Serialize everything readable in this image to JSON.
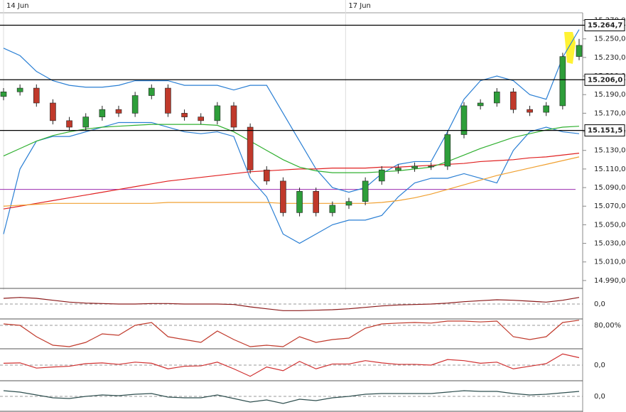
{
  "chart_data": {
    "type": "candlestick",
    "xticks": [
      {
        "value": 0,
        "label": "14 Jun"
      },
      {
        "value": 20.8,
        "label": "17 Jun"
      }
    ],
    "xlim": [
      0,
      35
    ],
    "ylim": [
      14980,
      15275
    ],
    "yticks": [
      {
        "value": 15270,
        "label": "15.270,0"
      },
      {
        "value": 15250,
        "label": "15.250,0"
      },
      {
        "value": 15230,
        "label": "15.230,0"
      },
      {
        "value": 15210,
        "label": "15.210,0"
      },
      {
        "value": 15190,
        "label": "15.190,0"
      },
      {
        "value": 15170,
        "label": "15.170,0"
      },
      {
        "value": 15150,
        "label": "15.150,0"
      },
      {
        "value": 15130,
        "label": "15.130,0"
      },
      {
        "value": 15110,
        "label": "15.110,0"
      },
      {
        "value": 15090,
        "label": "15.090,0"
      },
      {
        "value": 15070,
        "label": "15.070,0"
      },
      {
        "value": 15050,
        "label": "15.050,0"
      },
      {
        "value": 15030,
        "label": "15.030,0"
      },
      {
        "value": 15010,
        "label": "15.010,0"
      },
      {
        "value": 14990,
        "label": "14.990,0"
      }
    ],
    "up_color": "#2e9e3a",
    "down_color": "#c0392b",
    "open": [
      15188,
      15193,
      15197,
      15181,
      15162,
      15155,
      15166,
      15174,
      15170,
      15189,
      15197,
      15170,
      15166,
      15162,
      15178,
      15155,
      15109,
      15097,
      15063,
      15086,
      15063,
      15071,
      15075,
      15097,
      15109,
      15111,
      15113,
      15113,
      15147,
      15178,
      15181,
      15193,
      15174,
      15171,
      15178,
      15231
    ],
    "high": [
      15197,
      15201,
      15201,
      15185,
      15166,
      15170,
      15178,
      15178,
      15193,
      15201,
      15201,
      15174,
      15170,
      15182,
      15182,
      15159,
      15113,
      15101,
      15090,
      15090,
      15075,
      15079,
      15101,
      15113,
      15115,
      15117,
      15117,
      15151,
      15182,
      15185,
      15197,
      15197,
      15178,
      15182,
      15235,
      15250
    ],
    "low": [
      15184,
      15189,
      15177,
      15158,
      15151,
      15151,
      15162,
      15166,
      15166,
      15185,
      15166,
      15162,
      15158,
      15158,
      15151,
      15105,
      15093,
      15059,
      15059,
      15059,
      15059,
      15067,
      15071,
      15093,
      15105,
      15107,
      15109,
      15109,
      15143,
      15174,
      15177,
      15170,
      15167,
      15167,
      15174,
      15227
    ],
    "close": [
      15193,
      15197,
      15181,
      15162,
      15155,
      15166,
      15174,
      15170,
      15189,
      15197,
      15170,
      15166,
      15162,
      15178,
      15155,
      15109,
      15097,
      15063,
      15086,
      15063,
      15071,
      15075,
      15097,
      15109,
      15111,
      15113,
      15113,
      15147,
      15178,
      15181,
      15193,
      15174,
      15171,
      15178,
      15231,
      15243
    ],
    "overlays": [
      {
        "color": "#2a7fd4",
        "values": [
          15240,
          15232,
          15215,
          15205,
          15200,
          15198,
          15198,
          15200,
          15205,
          15205,
          15205,
          15200,
          15200,
          15200,
          15195,
          15200,
          15200,
          15170,
          15140,
          15110,
          15090,
          15085,
          15090,
          15105,
          15115,
          15118,
          15118,
          15150,
          15185,
          15205,
          15210,
          15205,
          15190,
          15185,
          15230,
          15260
        ]
      },
      {
        "color": "#2a7fd4",
        "values": [
          15040,
          15110,
          15140,
          15145,
          15145,
          15150,
          15155,
          15160,
          15160,
          15160,
          15155,
          15150,
          15148,
          15150,
          15145,
          15100,
          15080,
          15040,
          15030,
          15040,
          15050,
          15055,
          15055,
          15060,
          15080,
          15095,
          15100,
          15100,
          15105,
          15100,
          15095,
          15130,
          15150,
          15155,
          15150,
          15148
        ]
      },
      {
        "color": "#e02020",
        "values": [
          15067,
          15070,
          15073,
          15076,
          15079,
          15082,
          15085,
          15088,
          15091,
          15094,
          15097,
          15099,
          15101,
          15103,
          15105,
          15107,
          15108,
          15109,
          15110,
          15110,
          15111,
          15111,
          15111,
          15112,
          15112,
          15113,
          15114,
          15115,
          15116,
          15118,
          15119,
          15120,
          15122,
          15123,
          15125,
          15127
        ]
      },
      {
        "color": "#f0a030",
        "values": [
          15070,
          15071,
          15072,
          15073,
          15073,
          15073,
          15073,
          15073,
          15073,
          15073,
          15074,
          15074,
          15074,
          15074,
          15074,
          15074,
          15074,
          15073,
          15073,
          15073,
          15073,
          15073,
          15073,
          15074,
          15076,
          15079,
          15083,
          15088,
          15093,
          15098,
          15103,
          15107,
          15111,
          15115,
          15119,
          15123
        ]
      },
      {
        "color": "#30b030",
        "values": [
          15124,
          15132,
          15140,
          15146,
          15150,
          15153,
          15155,
          15156,
          15157,
          15158,
          15158,
          15158,
          15158,
          15157,
          15150,
          15140,
          15130,
          15120,
          15112,
          15108,
          15106,
          15106,
          15106,
          15107,
          15108,
          15110,
          15112,
          15118,
          15125,
          15132,
          15138,
          15144,
          15148,
          15152,
          15155,
          15156
        ]
      }
    ],
    "hline": {
      "color": "#9b2bb0",
      "value": 15088
    },
    "levels": [
      {
        "value": 15264.7,
        "label": "15.264,7"
      },
      {
        "value": 15206,
        "label": "15.206,0"
      },
      {
        "value": 15151.5,
        "label": "15.151,5"
      }
    ],
    "indicators": [
      {
        "color": "#8b1a1a",
        "ylim": [
          -30,
          30
        ],
        "yticks": [
          {
            "value": 0,
            "label": "0,0"
          }
        ],
        "values": [
          12,
          14,
          12,
          8,
          4,
          2,
          1,
          0,
          0,
          1,
          1,
          0,
          0,
          0,
          -1,
          -6,
          -10,
          -14,
          -14,
          -13,
          -12,
          -10,
          -7,
          -4,
          -2,
          -1,
          0,
          2,
          5,
          7,
          9,
          8,
          6,
          4,
          8,
          14
        ]
      },
      {
        "color": "#c0392b",
        "ylim": [
          0,
          100
        ],
        "yticks": [
          {
            "value": 80,
            "label": "80,00%"
          }
        ],
        "values": [
          85,
          80,
          40,
          10,
          5,
          20,
          50,
          45,
          80,
          90,
          40,
          30,
          20,
          60,
          30,
          5,
          10,
          5,
          40,
          20,
          30,
          35,
          70,
          85,
          88,
          90,
          88,
          95,
          95,
          92,
          95,
          40,
          30,
          40,
          90,
          98
        ]
      },
      {
        "color": "#d03030",
        "ylim": [
          -40,
          40
        ],
        "yticks": [
          {
            "value": 0,
            "label": "0,0"
          }
        ],
        "values": [
          5,
          6,
          -8,
          -5,
          -3,
          4,
          6,
          2,
          8,
          5,
          -10,
          -3,
          -2,
          8,
          -10,
          -30,
          -5,
          -15,
          10,
          -10,
          3,
          3,
          12,
          6,
          2,
          2,
          0,
          15,
          12,
          5,
          8,
          -10,
          -3,
          4,
          30,
          20
        ]
      },
      {
        "color": "#2f4f4f",
        "ylim": [
          -20,
          20
        ],
        "yticks": [
          {
            "value": 0,
            "label": "0,0"
          }
        ],
        "values": [
          8,
          6,
          2,
          -2,
          -3,
          0,
          2,
          1,
          3,
          4,
          -1,
          -2,
          -2,
          2,
          -3,
          -8,
          -5,
          -10,
          -4,
          -6,
          -2,
          0,
          3,
          4,
          4,
          4,
          4,
          6,
          8,
          7,
          7,
          4,
          2,
          3,
          5,
          7
        ]
      }
    ]
  }
}
